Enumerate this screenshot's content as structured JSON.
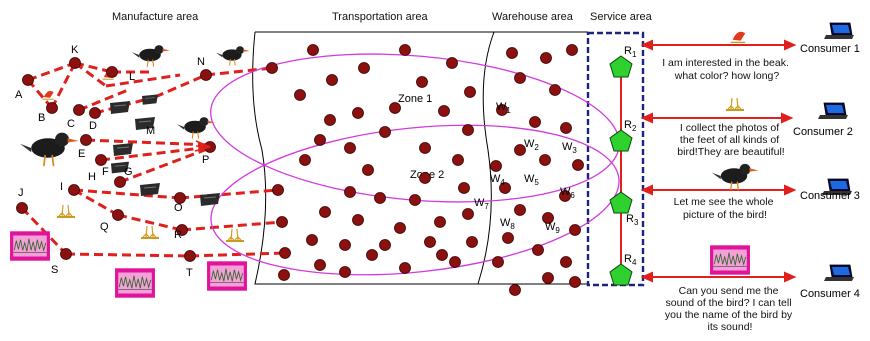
{
  "areas": {
    "manufacture": "Manufacture area",
    "transportation": "Transportation area",
    "warehouse": "Warehouse area",
    "service": "Service area"
  },
  "zones": {
    "zone1": "Zone 1",
    "zone2": "Zone 2"
  },
  "nodes": [
    "A",
    "B",
    "C",
    "D",
    "E",
    "F",
    "G",
    "H",
    "I",
    "J",
    "K",
    "L",
    "M",
    "N",
    "O",
    "P",
    "Q",
    "R",
    "S",
    "T"
  ],
  "warehouses": [
    {
      "base": "W",
      "sub": "1"
    },
    {
      "base": "W",
      "sub": "2"
    },
    {
      "base": "W",
      "sub": "3"
    },
    {
      "base": "W",
      "sub": "4"
    },
    {
      "base": "W",
      "sub": "5"
    },
    {
      "base": "W",
      "sub": "6"
    },
    {
      "base": "W",
      "sub": "7"
    },
    {
      "base": "W",
      "sub": "8"
    },
    {
      "base": "W",
      "sub": "9"
    }
  ],
  "routers": [
    {
      "base": "R",
      "sub": "1"
    },
    {
      "base": "R",
      "sub": "2"
    },
    {
      "base": "R",
      "sub": "3"
    },
    {
      "base": "R",
      "sub": "4"
    }
  ],
  "consumers": [
    {
      "name": "Consumer 1",
      "request": [
        "I am interested in the beak.",
        "what color? how long?"
      ]
    },
    {
      "name": "Consumer 2",
      "request": [
        "I collect the photos of",
        "the feet of all kinds of",
        "bird!They are beautiful!"
      ]
    },
    {
      "name": "Consumer 3",
      "request": [
        "Let me see the whole",
        "picture of the bird!"
      ]
    },
    {
      "name": "Consumer 4",
      "request": [
        "Can you send me the",
        "sound of the bird? I can tell",
        "you the name of the bird by",
        "its sound!"
      ]
    }
  ],
  "colors": {
    "node": "#8b1010",
    "link": "#e0201c",
    "zone": "#d23adf",
    "router": "#2fd12f",
    "service_border": "#1a237e",
    "sound_card": "#e0149a"
  }
}
